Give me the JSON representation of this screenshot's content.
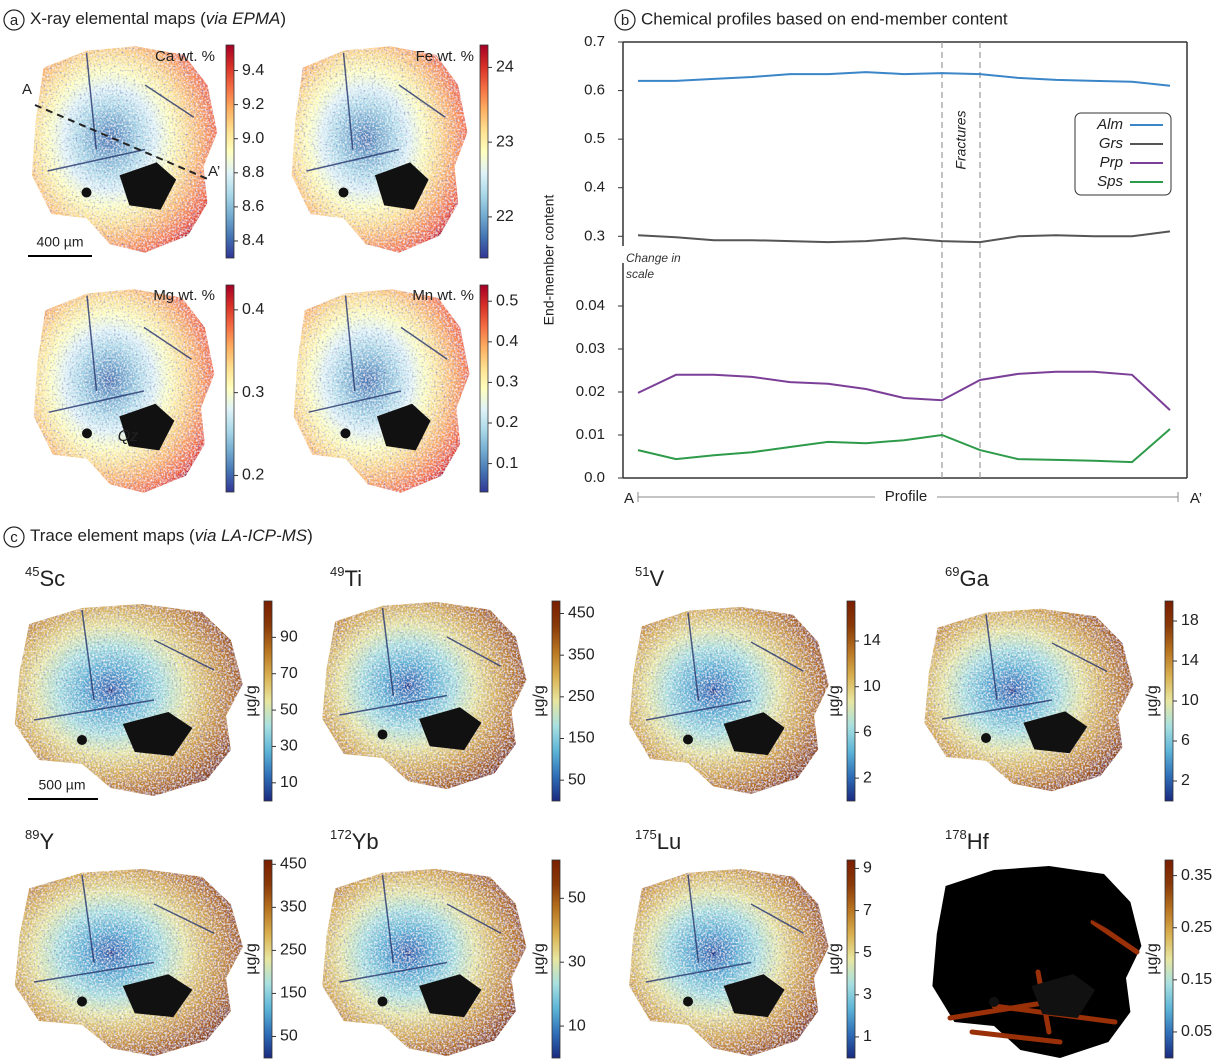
{
  "panel_a": {
    "letter": "a",
    "title_parts": [
      "X-ray elemental maps (",
      "via EPMA",
      ")"
    ],
    "scale_bar": "400 µm",
    "section_start": "A",
    "section_end": "A’",
    "mineral_label": "Qz"
  },
  "panel_b": {
    "letter": "b"
  },
  "panel_c": {
    "letter": "c",
    "title_parts": [
      "Trace element maps (",
      "via LA-ICP-MS",
      ")"
    ],
    "scale_bar": "500 µm",
    "unit": "µg/g"
  },
  "chart_data": [
    {
      "type": "line",
      "title": "Chemical profiles based on end-member content",
      "ylabel": "End-member content",
      "xlabel": "Profile",
      "x_start_label": "A",
      "x_end_label": "A’",
      "categories": [
        null,
        null,
        null,
        null,
        null,
        null,
        null,
        null,
        null,
        null,
        null,
        null,
        null,
        null,
        null
      ],
      "ylim": [
        0.28,
        0.7
      ],
      "yticks": [
        0.3,
        0.4,
        0.5,
        0.6,
        0.7
      ],
      "y2lim": [
        0,
        0.05
      ],
      "y2ticks": [
        {
          "value": 0,
          "label": "0.0"
        },
        0.01,
        0.02,
        0.03,
        0.04
      ],
      "annotation_scale": "Change in scale",
      "annotation_fractures": "Fractures",
      "fracture_at": [
        8,
        9
      ],
      "legend": "upper right",
      "series": [
        {
          "name": "Alm",
          "color": "#3a86c8",
          "values": [
            0.62,
            0.62,
            0.624,
            0.628,
            0.634,
            0.634,
            0.638,
            0.634,
            0.636,
            0.634,
            0.626,
            0.622,
            0.62,
            0.618,
            0.61
          ]
        },
        {
          "name": "Grs",
          "color": "#555555",
          "values": [
            0.302,
            0.298,
            0.292,
            0.292,
            0.29,
            0.288,
            0.29,
            0.296,
            0.29,
            0.288,
            0.3,
            0.302,
            0.3,
            0.3,
            0.31
          ]
        },
        {
          "name": "Prp",
          "color": "#7b3f98",
          "axis": "y2",
          "values": [
            0.0198,
            0.024,
            0.024,
            0.0235,
            0.0223,
            0.0219,
            0.0207,
            0.0186,
            0.0181,
            0.0228,
            0.0242,
            0.0247,
            0.0247,
            0.024,
            0.0158
          ]
        },
        {
          "name": "Sps",
          "color": "#2e9b4a",
          "axis": "y2",
          "values": [
            0.0065,
            0.0044,
            0.0053,
            0.006,
            0.0072,
            0.0084,
            0.0081,
            0.0088,
            0.01,
            0.0065,
            0.0044,
            0.0042,
            0.004,
            0.0037,
            0.0114
          ]
        }
      ]
    },
    {
      "type": "map",
      "title": "Ca wt. %",
      "ylim": [
        8.3,
        9.55
      ],
      "yticks": [
        8.4,
        8.6,
        8.8,
        {
          "value": 9,
          "label": "9.0"
        },
        9.2,
        9.4
      ],
      "colormap": [
        "#313695",
        "#4575b4",
        "#74add1",
        "#abd9e9",
        "#e0f3f8",
        "#ffffbf",
        "#fee090",
        "#fdae61",
        "#f46d43",
        "#d73027",
        "#a50026"
      ]
    },
    {
      "type": "map",
      "title": "Fe wt. %",
      "ylim": [
        21.45,
        24.3
      ],
      "yticks": [
        22,
        23,
        24
      ],
      "colormap": [
        "#313695",
        "#4575b4",
        "#74add1",
        "#abd9e9",
        "#e0f3f8",
        "#ffffbf",
        "#fee090",
        "#fdae61",
        "#f46d43",
        "#d73027",
        "#a50026"
      ]
    },
    {
      "type": "map",
      "title": "Mg wt. %",
      "ylim": [
        0.18,
        0.43
      ],
      "yticks": [
        0.2,
        0.3,
        0.4
      ],
      "colormap": [
        "#313695",
        "#4575b4",
        "#74add1",
        "#abd9e9",
        "#e0f3f8",
        "#ffffbf",
        "#fee090",
        "#fdae61",
        "#f46d43",
        "#d73027",
        "#a50026"
      ]
    },
    {
      "type": "map",
      "title": "Mn wt. %",
      "ylim": [
        0.03,
        0.54
      ],
      "yticks": [
        0.1,
        0.2,
        0.3,
        0.4,
        0.5
      ],
      "colormap": [
        "#313695",
        "#4575b4",
        "#74add1",
        "#abd9e9",
        "#e0f3f8",
        "#ffffbf",
        "#fee090",
        "#fdae61",
        "#f46d43",
        "#d73027",
        "#a50026"
      ]
    },
    {
      "type": "map",
      "mass": "45",
      "element": "Sc",
      "ylim": [
        0,
        110
      ],
      "yticks": [
        10,
        30,
        50,
        70,
        90
      ],
      "colormap": [
        "#1a2a80",
        "#2f6fb8",
        "#5db5d8",
        "#a8e0e0",
        "#e8e6a0",
        "#d9b050",
        "#b87420",
        "#8a3a08",
        "#7a1e00"
      ]
    },
    {
      "type": "map",
      "mass": "49",
      "element": "Ti",
      "ylim": [
        0,
        480
      ],
      "yticks": [
        50,
        150,
        250,
        350,
        450
      ],
      "colormap": [
        "#1a2a80",
        "#2f6fb8",
        "#5db5d8",
        "#a8e0e0",
        "#e8e6a0",
        "#d9b050",
        "#b87420",
        "#8a3a08",
        "#7a1e00"
      ]
    },
    {
      "type": "map",
      "mass": "51",
      "element": "V",
      "ylim": [
        0,
        17.5
      ],
      "yticks": [
        2,
        6,
        10,
        14
      ],
      "colormap": [
        "#1a2a80",
        "#2f6fb8",
        "#5db5d8",
        "#a8e0e0",
        "#e8e6a0",
        "#d9b050",
        "#b87420",
        "#8a3a08",
        "#7a1e00"
      ]
    },
    {
      "type": "map",
      "mass": "69",
      "element": "Ga",
      "ylim": [
        0,
        20
      ],
      "yticks": [
        2,
        6,
        10,
        14,
        18
      ],
      "colormap": [
        "#1a2a80",
        "#2f6fb8",
        "#5db5d8",
        "#a8e0e0",
        "#e8e6a0",
        "#d9b050",
        "#b87420",
        "#8a3a08",
        "#7a1e00"
      ]
    },
    {
      "type": "map",
      "mass": "89",
      "element": "Y",
      "ylim": [
        0,
        460
      ],
      "yticks": [
        50,
        150,
        250,
        350,
        450
      ],
      "colormap": [
        "#1a2a80",
        "#2f6fb8",
        "#5db5d8",
        "#a8e0e0",
        "#e8e6a0",
        "#d9b050",
        "#b87420",
        "#8a3a08",
        "#7a1e00"
      ]
    },
    {
      "type": "map",
      "mass": "172",
      "element": "Yb",
      "ylim": [
        0,
        62
      ],
      "yticks": [
        10,
        30,
        50
      ],
      "colormap": [
        "#1a2a80",
        "#2f6fb8",
        "#5db5d8",
        "#a8e0e0",
        "#e8e6a0",
        "#d9b050",
        "#b87420",
        "#8a3a08",
        "#7a1e00"
      ]
    },
    {
      "type": "map",
      "mass": "175",
      "element": "Lu",
      "ylim": [
        0,
        9.4
      ],
      "yticks": [
        1,
        3,
        5,
        7,
        9
      ],
      "colormap": [
        "#1a2a80",
        "#2f6fb8",
        "#5db5d8",
        "#a8e0e0",
        "#e8e6a0",
        "#d9b050",
        "#b87420",
        "#8a3a08",
        "#7a1e00"
      ]
    },
    {
      "type": "map",
      "mass": "178",
      "element": "Hf",
      "ylim": [
        0,
        0.38
      ],
      "yticks": [
        0.05,
        0.15,
        0.25,
        0.35
      ],
      "colormap": [
        "#1a2a80",
        "#2f6fb8",
        "#5db5d8",
        "#a8e0e0",
        "#e8e6a0",
        "#d9b050",
        "#b87420",
        "#8a3a08",
        "#7a1e00"
      ]
    }
  ]
}
